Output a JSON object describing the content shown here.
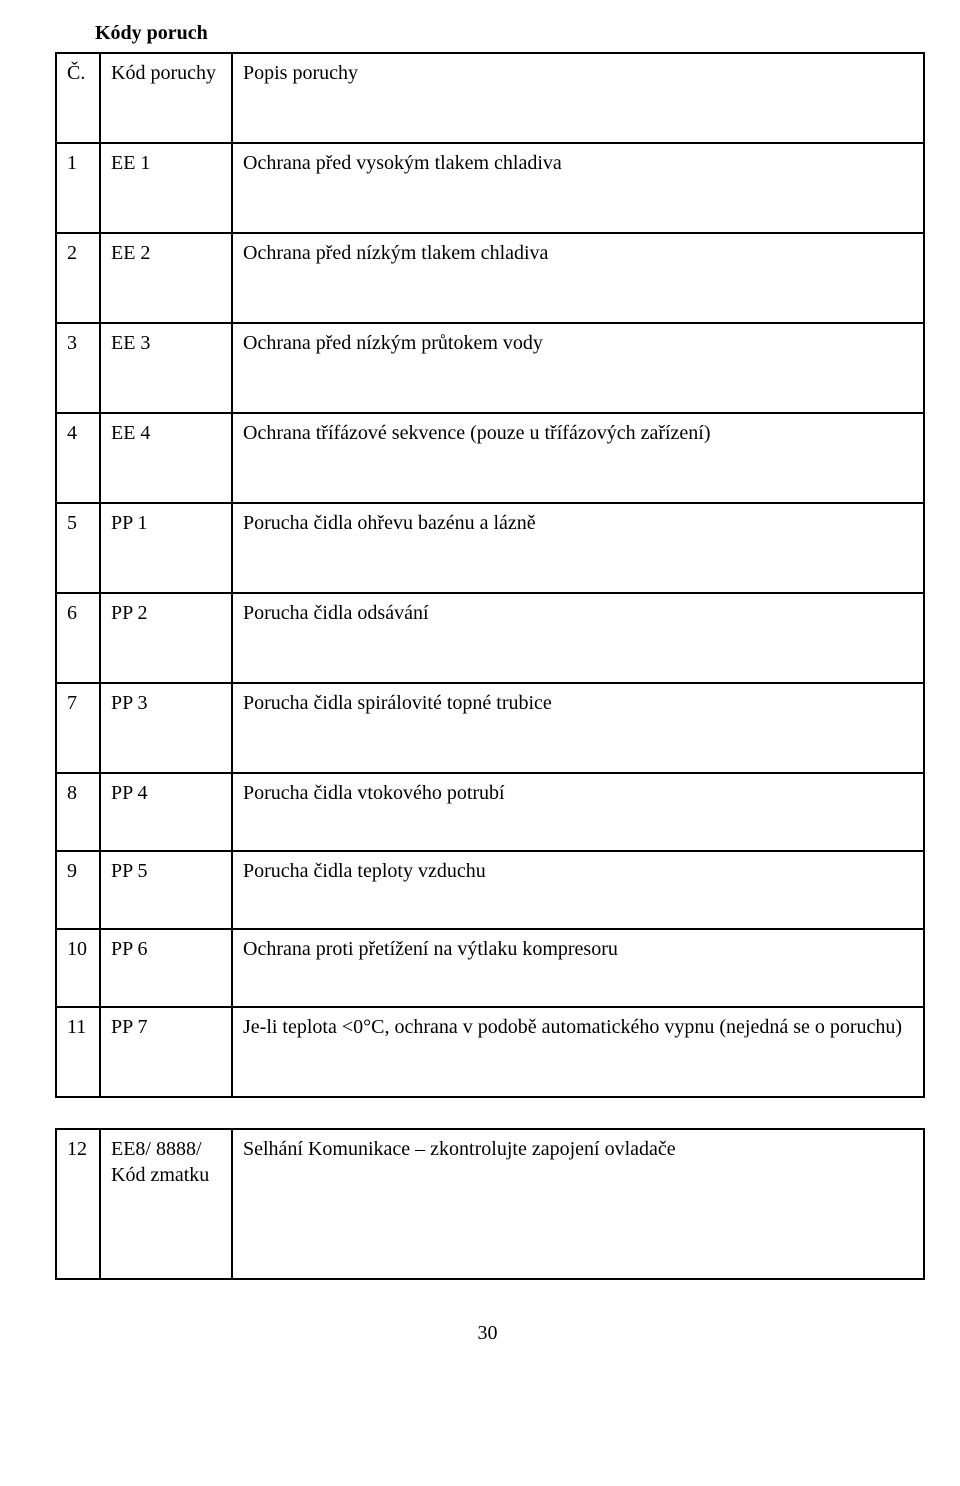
{
  "section_title": "Kódy poruch",
  "header": {
    "col1": "Č.",
    "col2": "Kód poruchy",
    "col3": "Popis poruchy"
  },
  "rows": [
    {
      "n": "1",
      "code": "EE 1",
      "desc": "Ochrana před vysokým tlakem chladiva"
    },
    {
      "n": "2",
      "code": "EE 2",
      "desc": "Ochrana před nízkým tlakem chladiva"
    },
    {
      "n": "3",
      "code": "EE 3",
      "desc": "Ochrana před nízkým průtokem vody"
    },
    {
      "n": "4",
      "code": "EE 4",
      "desc": "Ochrana třífázové sekvence (pouze u třífázových zařízení)"
    },
    {
      "n": "5",
      "code": "PP 1",
      "desc": "Porucha čidla ohřevu bazénu a lázně"
    },
    {
      "n": "6",
      "code": "PP 2",
      "desc": "Porucha čidla odsávání"
    },
    {
      "n": "7",
      "code": "PP 3",
      "desc": "Porucha čidla spirálovité topné trubice"
    },
    {
      "n": "8",
      "code": "PP 4",
      "desc": "Porucha čidla vtokového potrubí"
    },
    {
      "n": "9",
      "code": "PP 5",
      "desc": "Porucha čidla teploty vzduchu"
    },
    {
      "n": "10",
      "code": "PP 6",
      "desc": "Ochrana proti přetížení na výtlaku    kompresoru"
    },
    {
      "n": "11",
      "code": "PP 7",
      "desc": "Je-li teplota <0°C, ochrana v podobě automatického vypnu (nejedná se o poruchu)"
    }
  ],
  "footer_row": {
    "n": "12",
    "code": "EE8/ 8888/ Kód zmatku",
    "desc": "Selhání Komunikace – zkontrolujte zapojení ovladače"
  },
  "page_number": "30"
}
